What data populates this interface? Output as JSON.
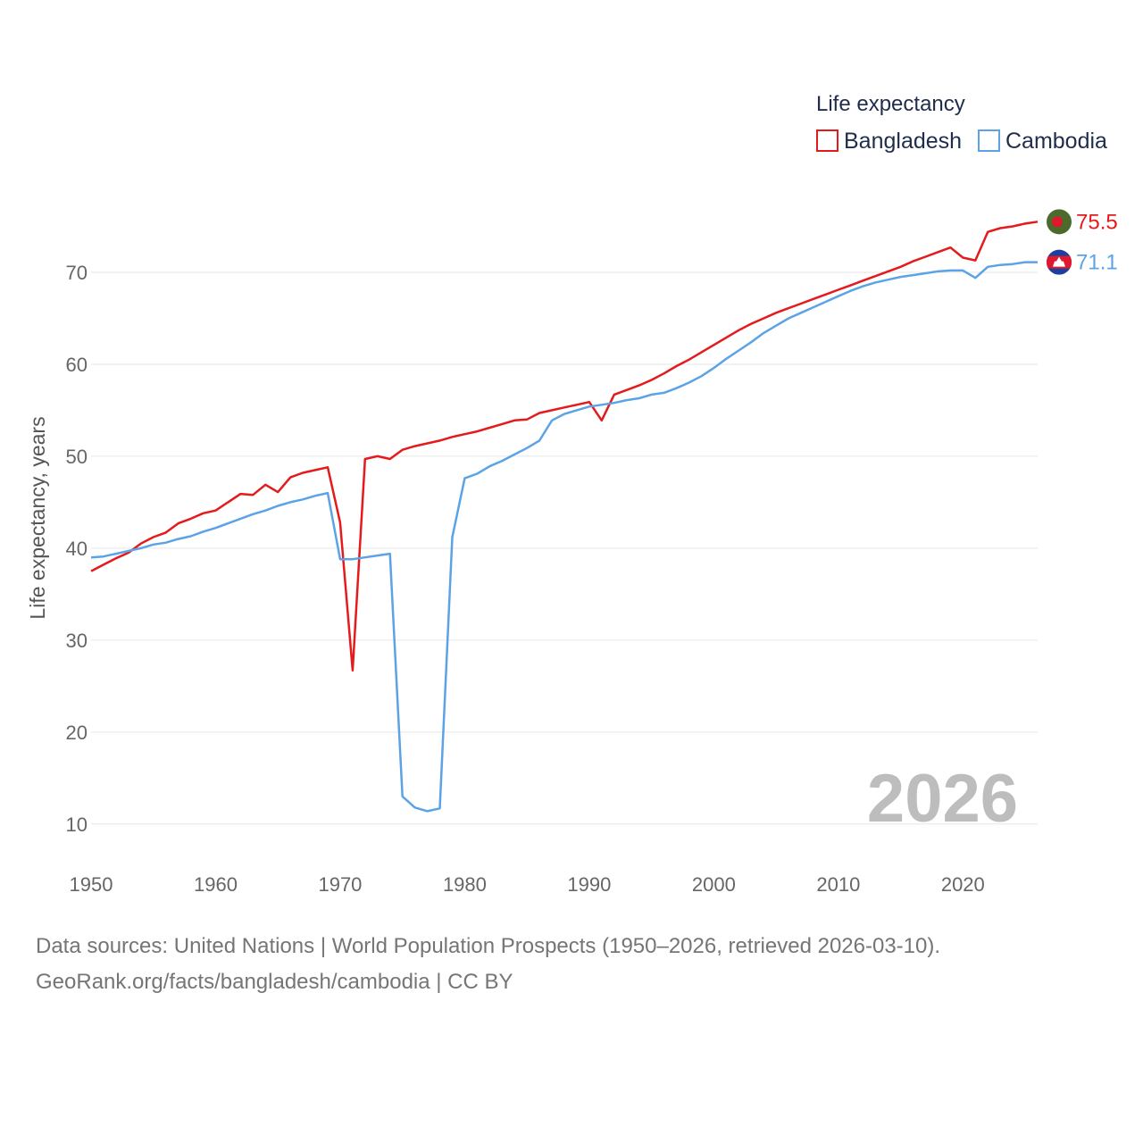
{
  "chart_data": {
    "type": "line",
    "legend_title": "Life expectancy",
    "ylabel": "Life expectancy, years",
    "xlabel": "",
    "xlim": [
      1950,
      2026
    ],
    "ylim": [
      6,
      80
    ],
    "x_ticks": [
      1950,
      1960,
      1970,
      1980,
      1990,
      2000,
      2010,
      2020
    ],
    "y_ticks": [
      10,
      20,
      30,
      40,
      50,
      60,
      70
    ],
    "year_watermark": "2026",
    "series": [
      {
        "name": "Bangladesh",
        "color": "#e41a1c",
        "flag_icon": "bangladesh-flag-icon",
        "end_label": "75.5",
        "x": [
          1950,
          1951,
          1952,
          1953,
          1954,
          1955,
          1956,
          1957,
          1958,
          1959,
          1960,
          1961,
          1962,
          1963,
          1964,
          1965,
          1966,
          1967,
          1968,
          1969,
          1970,
          1971,
          1972,
          1973,
          1974,
          1975,
          1976,
          1977,
          1978,
          1979,
          1980,
          1981,
          1982,
          1983,
          1984,
          1985,
          1986,
          1987,
          1988,
          1989,
          1990,
          1991,
          1992,
          1993,
          1994,
          1995,
          1996,
          1997,
          1998,
          1999,
          2000,
          2001,
          2002,
          2003,
          2004,
          2005,
          2006,
          2007,
          2008,
          2009,
          2010,
          2011,
          2012,
          2013,
          2014,
          2015,
          2016,
          2017,
          2018,
          2019,
          2020,
          2021,
          2022,
          2023,
          2024,
          2025,
          2026
        ],
        "values": [
          37.5,
          38.2,
          38.9,
          39.5,
          40.5,
          41.2,
          41.7,
          42.7,
          43.2,
          43.8,
          44.1,
          45.0,
          45.9,
          45.8,
          46.9,
          46.1,
          47.7,
          48.2,
          48.5,
          48.8,
          42.8,
          26.7,
          49.7,
          50.0,
          49.7,
          50.7,
          51.1,
          51.4,
          51.7,
          52.1,
          52.4,
          52.7,
          53.1,
          53.5,
          53.9,
          54.0,
          54.7,
          55.0,
          55.3,
          55.6,
          55.9,
          53.9,
          56.7,
          57.2,
          57.7,
          58.3,
          59.0,
          59.8,
          60.5,
          61.3,
          62.1,
          62.9,
          63.7,
          64.4,
          65.0,
          65.6,
          66.1,
          66.6,
          67.1,
          67.6,
          68.1,
          68.6,
          69.1,
          69.6,
          70.1,
          70.6,
          71.2,
          71.7,
          72.2,
          72.7,
          71.6,
          71.3,
          74.4,
          74.8,
          75.0,
          75.3,
          75.5
        ]
      },
      {
        "name": "Cambodia",
        "color": "#5ba3e6",
        "flag_icon": "cambodia-flag-icon",
        "end_label": "71.1",
        "x": [
          1950,
          1951,
          1952,
          1953,
          1954,
          1955,
          1956,
          1957,
          1958,
          1959,
          1960,
          1961,
          1962,
          1963,
          1964,
          1965,
          1966,
          1967,
          1968,
          1969,
          1970,
          1971,
          1972,
          1973,
          1974,
          1975,
          1976,
          1977,
          1978,
          1979,
          1980,
          1981,
          1982,
          1983,
          1984,
          1985,
          1986,
          1987,
          1988,
          1989,
          1990,
          1991,
          1992,
          1993,
          1994,
          1995,
          1996,
          1997,
          1998,
          1999,
          2000,
          2001,
          2002,
          2003,
          2004,
          2005,
          2006,
          2007,
          2008,
          2009,
          2010,
          2011,
          2012,
          2013,
          2014,
          2015,
          2016,
          2017,
          2018,
          2019,
          2020,
          2021,
          2022,
          2023,
          2024,
          2025,
          2026
        ],
        "values": [
          39.0,
          39.1,
          39.4,
          39.7,
          40.0,
          40.4,
          40.6,
          41.0,
          41.3,
          41.8,
          42.2,
          42.7,
          43.2,
          43.7,
          44.1,
          44.6,
          45.0,
          45.3,
          45.7,
          46.0,
          38.8,
          38.8,
          39.0,
          39.2,
          39.4,
          13.0,
          11.8,
          11.4,
          11.7,
          41.2,
          47.6,
          48.1,
          48.9,
          49.5,
          50.2,
          50.9,
          51.7,
          53.9,
          54.6,
          55.0,
          55.4,
          55.6,
          55.8,
          56.1,
          56.3,
          56.7,
          56.9,
          57.4,
          58.0,
          58.7,
          59.6,
          60.6,
          61.5,
          62.4,
          63.4,
          64.2,
          65.0,
          65.6,
          66.2,
          66.8,
          67.4,
          68.0,
          68.5,
          68.9,
          69.2,
          69.5,
          69.7,
          69.9,
          70.1,
          70.2,
          70.2,
          69.4,
          70.6,
          70.8,
          70.9,
          71.1,
          71.1
        ]
      }
    ]
  },
  "footer": {
    "line1": "Data sources: United Nations | World Population Prospects (1950–2026, retrieved 2026-03-10).",
    "line2": "GeoRank.org/facts/bangladesh/cambodia | CC BY"
  }
}
